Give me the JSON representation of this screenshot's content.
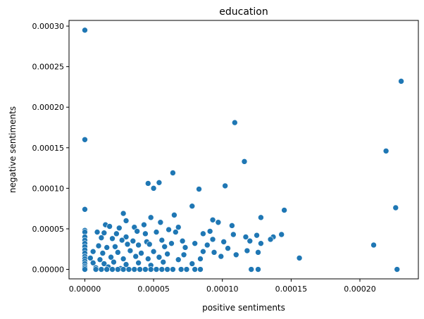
{
  "chart_data": {
    "type": "scatter",
    "title": "education",
    "xlabel": "positive sentiments",
    "ylabel": "negative sentiments",
    "xlim": [
      -1.15e-05,
      0.0002425
    ],
    "ylim": [
      -1.17e-05,
      0.000307
    ],
    "xticks": [
      0,
      5e-05,
      0.0001,
      0.00015,
      0.0002
    ],
    "xtick_labels": [
      "0.00000",
      "0.00005",
      "0.00010",
      "0.00015",
      "0.00020"
    ],
    "yticks": [
      0,
      5e-05,
      0.0001,
      0.00015,
      0.0002,
      0.00025,
      0.0003
    ],
    "ytick_labels": [
      "0.00000",
      "0.00005",
      "0.00010",
      "0.00015",
      "0.00020",
      "0.00025",
      "0.00030"
    ],
    "grid": false,
    "marker_color": "#1f77b4",
    "points": [
      [
        0,
        0.000295
      ],
      [
        0,
        0.00016
      ],
      [
        0,
        7.4e-05
      ],
      [
        0,
        4.8e-05
      ],
      [
        0,
        4.6e-05
      ],
      [
        0,
        4e-05
      ],
      [
        0,
        3.6e-05
      ],
      [
        0,
        3.2e-05
      ],
      [
        0,
        2.8e-05
      ],
      [
        0,
        2.4e-05
      ],
      [
        0,
        2e-05
      ],
      [
        0,
        1.6e-05
      ],
      [
        0,
        1.3e-05
      ],
      [
        0,
        1e-05
      ],
      [
        0,
        7e-06
      ],
      [
        0,
        4e-06
      ],
      [
        0,
        2e-06
      ],
      [
        0,
        0.0
      ],
      [
        0.00023,
        0.000232
      ],
      [
        0.000109,
        0.000181
      ],
      [
        0.000219,
        0.000146
      ],
      [
        0.000116,
        0.000133
      ],
      [
        6.4e-05,
        0.000119
      ],
      [
        4.6e-05,
        0.000106
      ],
      [
        5.4e-05,
        0.000107
      ],
      [
        5e-05,
        0.0001
      ],
      [
        0.000102,
        0.000103
      ],
      [
        8.3e-05,
        9.9e-05
      ],
      [
        7.8e-05,
        7.8e-05
      ],
      [
        0.000226,
        7.6e-05
      ],
      [
        0.000145,
        7.3e-05
      ],
      [
        2.8e-05,
        6.9e-05
      ],
      [
        6.5e-05,
        6.7e-05
      ],
      [
        4.8e-05,
        6.4e-05
      ],
      [
        0.000128,
        6.4e-05
      ],
      [
        9.3e-05,
        6.1e-05
      ],
      [
        3e-05,
        6e-05
      ],
      [
        9.7e-05,
        5.8e-05
      ],
      [
        5.5e-05,
        5.8e-05
      ],
      [
        1.5e-05,
        5.5e-05
      ],
      [
        1.8e-05,
        5.3e-05
      ],
      [
        4.3e-05,
        5.5e-05
      ],
      [
        3.6e-05,
        5.2e-05
      ],
      [
        2.5e-05,
        5.1e-05
      ],
      [
        0.000107,
        5.4e-05
      ],
      [
        6.8e-05,
        5.2e-05
      ],
      [
        6.1e-05,
        4.9e-05
      ],
      [
        3.8e-05,
        4.7e-05
      ],
      [
        9e-06,
        4.6e-05
      ],
      [
        1.4e-05,
        4.5e-05
      ],
      [
        2.3e-05,
        4.4e-05
      ],
      [
        3e-05,
        4e-05
      ],
      [
        4.4e-05,
        4.4e-05
      ],
      [
        5.2e-05,
        4.6e-05
      ],
      [
        6.6e-05,
        4.6e-05
      ],
      [
        8.6e-05,
        4.4e-05
      ],
      [
        9.1e-05,
        4.7e-05
      ],
      [
        0.000108,
        4.3e-05
      ],
      [
        0.000117,
        4e-05
      ],
      [
        0.000125,
        4.2e-05
      ],
      [
        0.000137,
        4e-05
      ],
      [
        0.000143,
        4.3e-05
      ],
      [
        1.2e-05,
        3.9e-05
      ],
      [
        2e-05,
        3.8e-05
      ],
      [
        2.7e-05,
        3.6e-05
      ],
      [
        3.5e-05,
        3.5e-05
      ],
      [
        4.5e-05,
        3.4e-05
      ],
      [
        5.6e-05,
        3.6e-05
      ],
      [
        7.1e-05,
        3.5e-05
      ],
      [
        9.3e-05,
        3.7e-05
      ],
      [
        0.000101,
        3.4e-05
      ],
      [
        0.00012,
        3.5e-05
      ],
      [
        0.000135,
        3.7e-05
      ],
      [
        1e-05,
        2.9e-05
      ],
      [
        1.6e-05,
        2.7e-05
      ],
      [
        2.2e-05,
        2.8e-05
      ],
      [
        3.1e-05,
        3.1e-05
      ],
      [
        3.9e-05,
        3e-05
      ],
      [
        4.7e-05,
        3.1e-05
      ],
      [
        5.8e-05,
        2.8e-05
      ],
      [
        6.3e-05,
        3.2e-05
      ],
      [
        7.3e-05,
        2.7e-05
      ],
      [
        8e-05,
        3.2e-05
      ],
      [
        8.9e-05,
        3e-05
      ],
      [
        0.000104,
        2.6e-05
      ],
      [
        0.000128,
        3.2e-05
      ],
      [
        6e-06,
        2.2e-05
      ],
      [
        1.3e-05,
        2e-05
      ],
      [
        2.4e-05,
        2.1e-05
      ],
      [
        3.3e-05,
        2.3e-05
      ],
      [
        4.1e-05,
        2e-05
      ],
      [
        5e-05,
        2.2e-05
      ],
      [
        6e-05,
        1.9e-05
      ],
      [
        7.2e-05,
        1.8e-05
      ],
      [
        8.6e-05,
        2.2e-05
      ],
      [
        9.4e-05,
        2.1e-05
      ],
      [
        0.00011,
        1.8e-05
      ],
      [
        0.000118,
        2.3e-05
      ],
      [
        0.000126,
        2.1e-05
      ],
      [
        4e-06,
        1.4e-05
      ],
      [
        1.1e-05,
        1.2e-05
      ],
      [
        1.9e-05,
        1.5e-05
      ],
      [
        2.8e-05,
        1.3e-05
      ],
      [
        3.7e-05,
        1.6e-05
      ],
      [
        4.6e-05,
        1.3e-05
      ],
      [
        5.4e-05,
        1.5e-05
      ],
      [
        6.8e-05,
        1.2e-05
      ],
      [
        8.4e-05,
        1.3e-05
      ],
      [
        9.9e-05,
        1.6e-05
      ],
      [
        0.000156,
        1.4e-05
      ],
      [
        6e-06,
        8e-06
      ],
      [
        1.4e-05,
        7e-06
      ],
      [
        2.1e-05,
        9e-06
      ],
      [
        3e-05,
        6e-06
      ],
      [
        3.9e-05,
        8e-06
      ],
      [
        4.8e-05,
        5e-06
      ],
      [
        5.7e-05,
        9e-06
      ],
      [
        7.8e-05,
        7e-06
      ],
      [
        0.00021,
        3e-05
      ],
      [
        8e-06,
        2e-06
      ],
      [
        1.7e-05,
        3e-06
      ],
      [
        2.6e-05,
        1e-06
      ],
      [
        8e-06,
        0.0
      ],
      [
        1.2e-05,
        0.0
      ],
      [
        1.6e-05,
        0.0
      ],
      [
        2e-05,
        0.0
      ],
      [
        2.4e-05,
        0.0
      ],
      [
        2.8e-05,
        0.0
      ],
      [
        3.2e-05,
        0.0
      ],
      [
        3.6e-05,
        0.0
      ],
      [
        4e-05,
        0.0
      ],
      [
        4.4e-05,
        0.0
      ],
      [
        4.8e-05,
        0.0
      ],
      [
        5.2e-05,
        0.0
      ],
      [
        5.6e-05,
        0.0
      ],
      [
        6e-05,
        0.0
      ],
      [
        6.4e-05,
        0.0
      ],
      [
        7e-05,
        0.0
      ],
      [
        7.4e-05,
        0.0
      ],
      [
        8e-05,
        0.0
      ],
      [
        8.4e-05,
        0.0
      ],
      [
        0.000121,
        0.0
      ],
      [
        0.000126,
        0.0
      ],
      [
        0.000227,
        0.0
      ]
    ]
  }
}
